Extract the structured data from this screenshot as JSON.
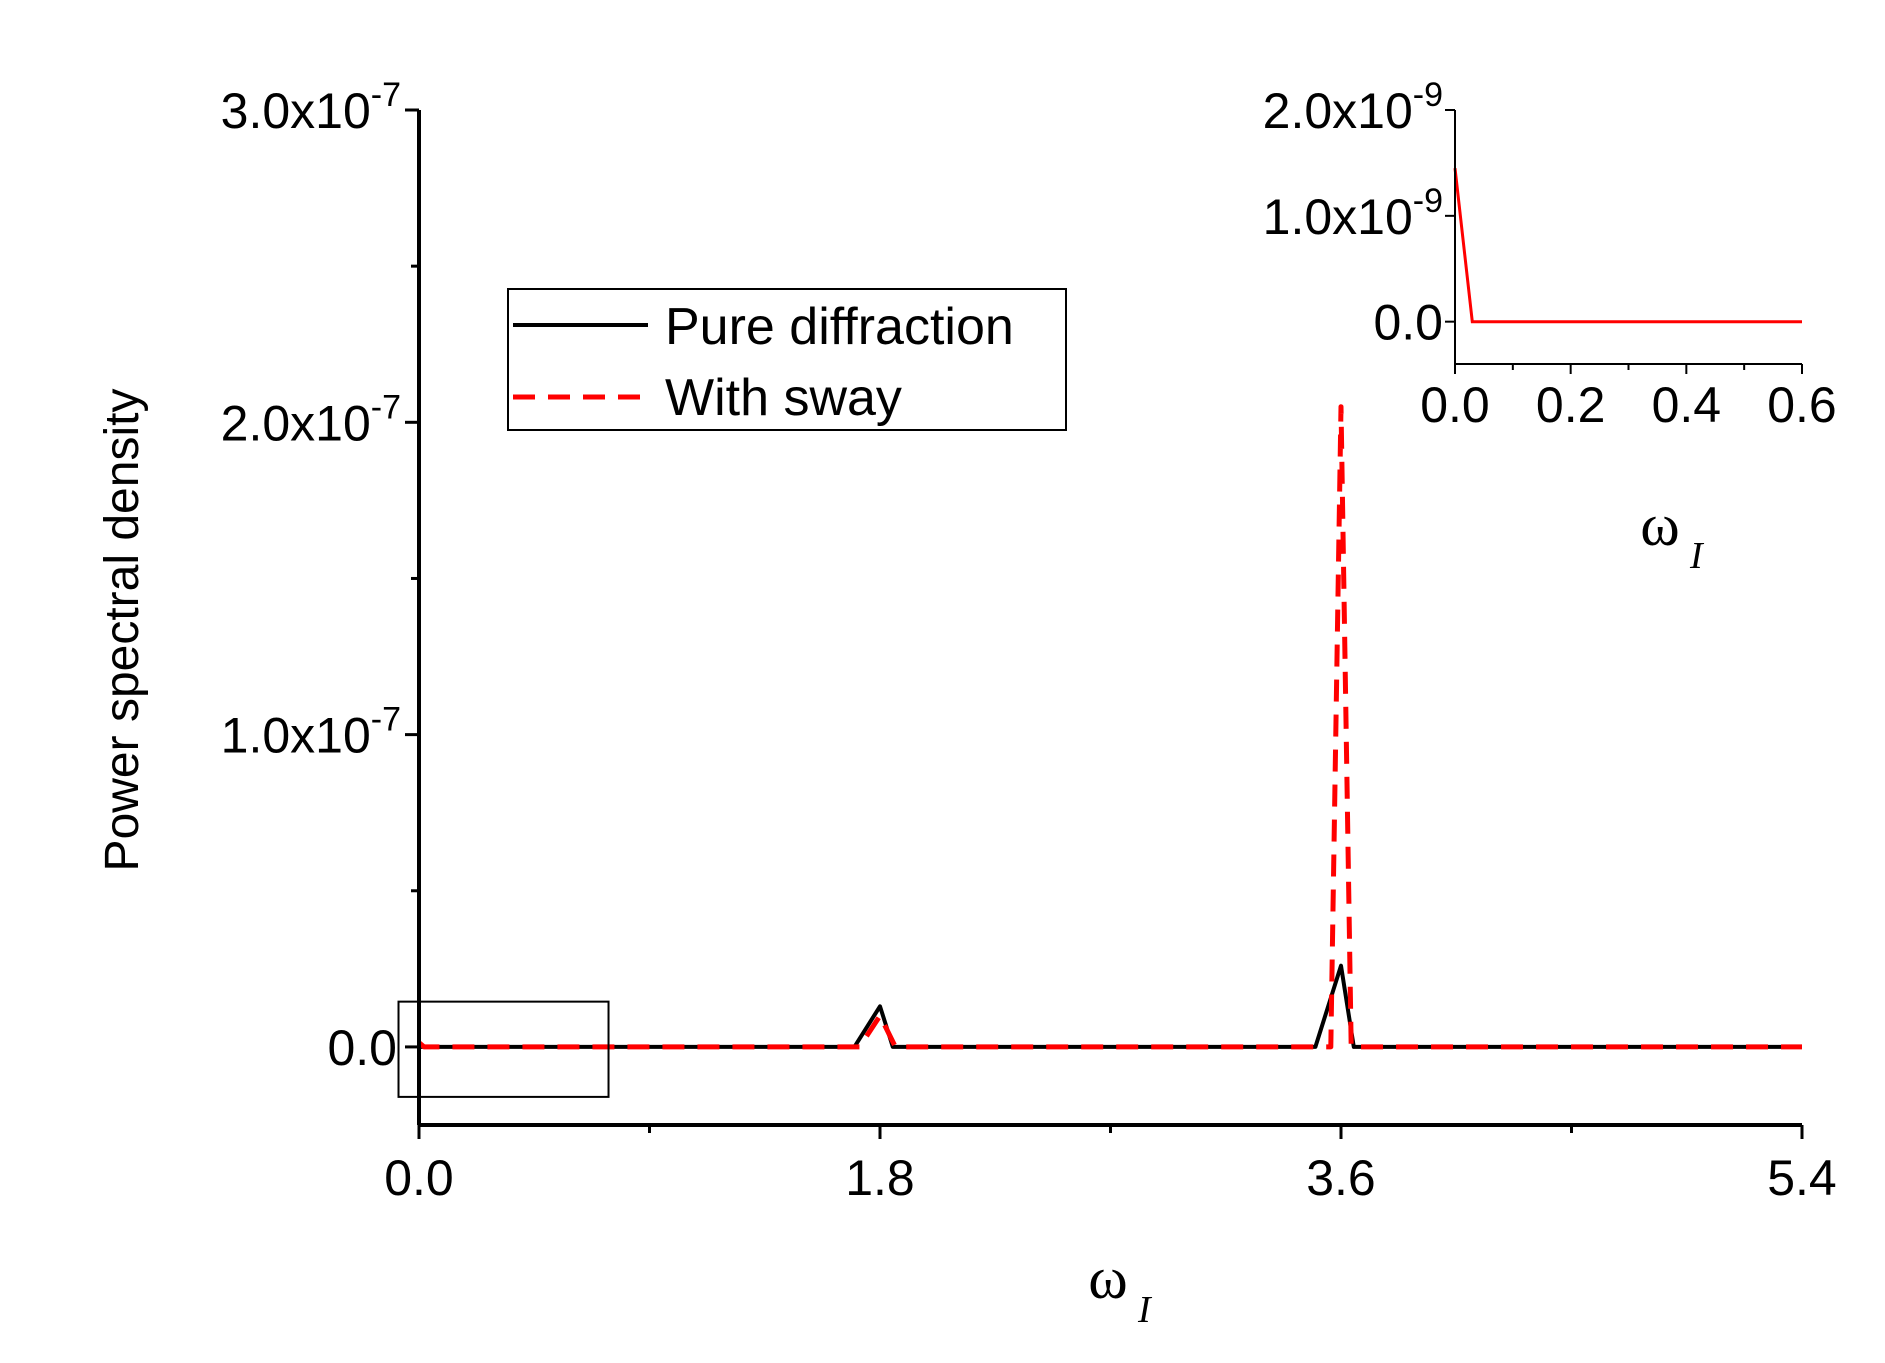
{
  "chart_data": {
    "type": "line",
    "ylabel": "Power spectral density",
    "xlabel": "ω",
    "xlabel_sub": "I",
    "xlim": [
      0,
      5.4
    ],
    "ylim": [
      -2.5e-08,
      3e-07
    ],
    "x_ticks": [
      {
        "value": 0.0,
        "label": "0.0"
      },
      {
        "value": 1.8,
        "label": "1.8"
      },
      {
        "value": 3.6,
        "label": "3.6"
      },
      {
        "value": 5.4,
        "label": "5.4"
      }
    ],
    "x_minor_ticks": [
      0.9,
      2.7,
      4.5
    ],
    "y_ticks": [
      {
        "value": 0.0,
        "label": "0.0",
        "exp": ""
      },
      {
        "value": 1e-07,
        "label": "1.0x10",
        "exp": "-7"
      },
      {
        "value": 2e-07,
        "label": "2.0x10",
        "exp": "-7"
      },
      {
        "value": 3e-07,
        "label": "3.0x10",
        "exp": "-7"
      }
    ],
    "y_minor_ticks": [
      5e-08,
      1.5e-07,
      2.5e-07
    ],
    "legend": {
      "position": "upper-left-center",
      "entries": [
        {
          "name": "Pure diffraction",
          "color": "#000000",
          "style": "solid"
        },
        {
          "name": "With sway",
          "color": "#ff0000",
          "style": "dashed"
        }
      ]
    },
    "series": [
      {
        "name": "Pure diffraction",
        "color": "#000000",
        "style": "solid",
        "x": [
          0,
          1.7,
          1.8,
          1.85,
          3.5,
          3.6,
          3.65,
          5.4
        ],
        "y": [
          0,
          0,
          1.3e-08,
          0,
          0,
          2.6e-08,
          0,
          0
        ]
      },
      {
        "name": "With sway",
        "color": "#ff0000",
        "style": "dashed",
        "x": [
          0,
          0.02,
          0.06,
          1.72,
          1.8,
          1.86,
          3.56,
          3.6,
          3.64,
          5.4
        ],
        "y": [
          1.4e-09,
          0,
          0,
          0,
          1e-08,
          0,
          0,
          2.05e-07,
          0,
          0
        ]
      }
    ],
    "zoom_box": {
      "x_range": [
        -0.08,
        0.74
      ],
      "y_range": [
        -1.6e-08,
        1.45e-08
      ]
    },
    "inset": {
      "xlabel": "ω",
      "xlabel_sub": "I",
      "xlim": [
        0,
        0.6
      ],
      "ylim": [
        -4e-10,
        2e-09
      ],
      "x_ticks": [
        {
          "value": 0.0,
          "label": "0.0"
        },
        {
          "value": 0.2,
          "label": "0.2"
        },
        {
          "value": 0.4,
          "label": "0.4"
        },
        {
          "value": 0.6,
          "label": "0.6"
        }
      ],
      "x_minor_ticks": [
        0.1,
        0.3,
        0.5
      ],
      "y_ticks": [
        {
          "value": 0.0,
          "label": "0.0",
          "exp": ""
        },
        {
          "value": 1e-09,
          "label": "1.0x10",
          "exp": "-9"
        },
        {
          "value": 2e-09,
          "label": "2.0x10",
          "exp": "-9"
        }
      ],
      "series": [
        {
          "name": "With sway",
          "color": "#ff0000",
          "style": "solid",
          "x": [
            0,
            0.03,
            0.6
          ],
          "y": [
            1.45e-09,
            0,
            0
          ]
        }
      ]
    }
  }
}
